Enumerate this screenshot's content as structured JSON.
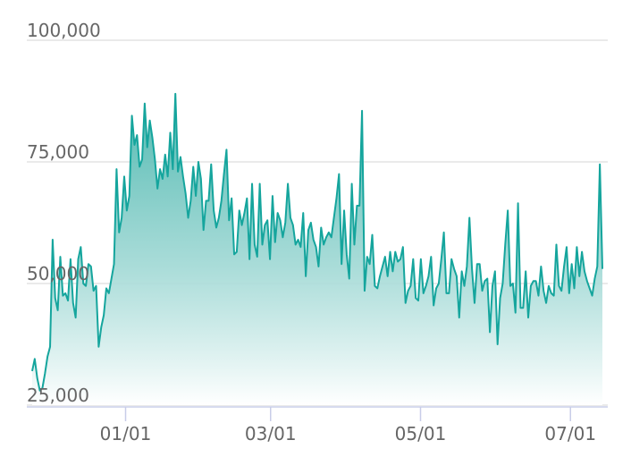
{
  "chart_data": {
    "type": "area",
    "title": "",
    "xlabel": "",
    "ylabel": "",
    "x_ticks": [
      "01/01",
      "03/01",
      "05/01",
      "07/01"
    ],
    "x_tick_dates": [
      "01/01",
      "03/01",
      "05/01",
      "07/01"
    ],
    "y_ticks": [
      "25,000",
      "50,000",
      "75,000",
      "100,000"
    ],
    "ylim": [
      25000,
      100000
    ],
    "grid": "horizontal",
    "legend": "none",
    "colors": {
      "line": "#15a59d",
      "fill_top": "#4fb8b0",
      "fill_bottom": "#ffffff",
      "grid": "#e3e3e3",
      "axis": "#c8cde8"
    },
    "x_start": "11/24",
    "x_end": "07/14",
    "series": [
      {
        "values": [
          32000,
          34500,
          30500,
          28000,
          28500,
          31500,
          35000,
          37000,
          59000,
          47000,
          44500,
          55500,
          47500,
          48000,
          46500,
          55000,
          46000,
          43000,
          55000,
          57500,
          50000,
          49500,
          54000,
          53500,
          48500,
          49500,
          37000,
          41000,
          43500,
          49000,
          48000,
          51000,
          54000,
          73500,
          60500,
          63500,
          72000,
          65000,
          68000,
          84500,
          78500,
          80500,
          74000,
          75500,
          87000,
          78000,
          83500,
          80000,
          75500,
          69500,
          73500,
          71500,
          76500,
          72000,
          81000,
          73500,
          89000,
          73000,
          76000,
          72000,
          68500,
          63500,
          67000,
          74000,
          68000,
          75000,
          71500,
          61000,
          67000,
          67000,
          74500,
          65000,
          61500,
          63500,
          67000,
          72500,
          77500,
          63000,
          67500,
          56000,
          56500,
          65000,
          62000,
          64500,
          67500,
          55000,
          70500,
          58000,
          55500,
          70500,
          58000,
          62000,
          63000,
          55000,
          68000,
          58500,
          64500,
          63000,
          59500,
          62500,
          70500,
          63500,
          62000,
          58000,
          59000,
          57500,
          64500,
          51500,
          61000,
          62500,
          59000,
          57500,
          53500,
          61500,
          58000,
          59500,
          60500,
          59500,
          63500,
          67500,
          72500,
          54000,
          65000,
          56000,
          51000,
          70500,
          58000,
          66000,
          66000,
          85500,
          48500,
          55500,
          54000,
          60000,
          49500,
          49000,
          51500,
          53500,
          55500,
          51500,
          56500,
          52500,
          56500,
          54500,
          55000,
          57500,
          46000,
          48500,
          49500,
          55000,
          47000,
          46500,
          55000,
          48000,
          49500,
          51500,
          55500,
          45500,
          49000,
          50000,
          55000,
          60500,
          48000,
          48000,
          55000,
          53000,
          51500,
          43000,
          52500,
          49500,
          53500,
          63500,
          53000,
          46000,
          54000,
          54000,
          48500,
          50500,
          51000,
          40000,
          49500,
          52500,
          37500,
          47000,
          50000,
          58000,
          65000,
          49500,
          50000,
          44000,
          66500,
          45000,
          45000,
          52500,
          43000,
          49500,
          50500,
          50500,
          47500,
          53500,
          48500,
          46000,
          49500,
          48000,
          47500,
          58000,
          49500,
          48500,
          53500,
          57500,
          48000,
          54000,
          49000,
          57500,
          51500,
          56500,
          52500,
          50500,
          49000,
          47500,
          51000,
          53500,
          74500,
          53000
        ]
      }
    ]
  }
}
